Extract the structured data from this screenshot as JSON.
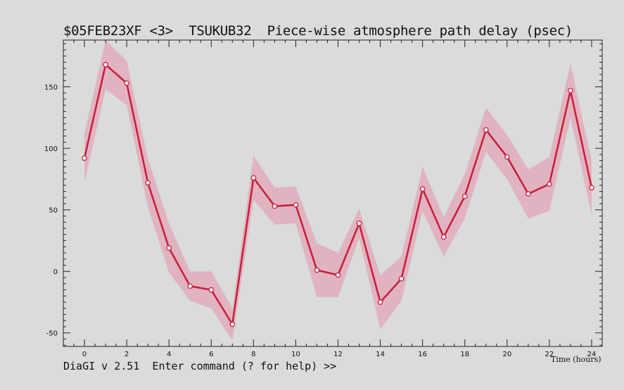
{
  "header": {
    "title": "$05FEB23XF <3>  TSUKUB32  Piece-wise atmosphere path delay (psec)"
  },
  "status_bar": {
    "prompt": "DiaGI v 2.51  Enter command (? for help) >>"
  },
  "colors": {
    "background": "#d9dcd9",
    "line": "#c8203e",
    "band": "#e3a6b8",
    "marker_fill": "#ffffff"
  },
  "chart_data": {
    "type": "line",
    "title": "$05FEB23XF <3>  TSUKUB32  Piece-wise atmosphere path delay (psec)",
    "xlabel": "Time (hours)",
    "ylabel": "",
    "xlim": [
      -1,
      24.5
    ],
    "ylim": [
      -61,
      188
    ],
    "xticks": [
      0,
      2,
      4,
      6,
      8,
      10,
      12,
      14,
      16,
      18,
      20,
      22,
      24
    ],
    "yticks": [
      -50,
      0,
      50,
      100,
      150
    ],
    "grid": false,
    "series": [
      {
        "x": [
          0,
          1,
          2,
          3,
          4,
          5,
          6,
          7,
          8,
          9,
          10,
          11,
          12,
          13,
          14,
          15,
          16,
          17,
          18,
          19,
          20,
          21,
          22,
          23,
          24
        ],
        "values": [
          92,
          168,
          153,
          72,
          19,
          -12,
          -15,
          -43,
          76,
          53,
          54,
          1,
          -3,
          39,
          -25,
          -6,
          67,
          28,
          61,
          115,
          93,
          63,
          71,
          147,
          68
        ],
        "error": [
          20,
          20,
          18,
          20,
          20,
          12,
          15,
          13,
          18,
          15,
          15,
          22,
          18,
          12,
          22,
          18,
          18,
          16,
          18,
          18,
          18,
          20,
          22,
          22,
          22
        ]
      }
    ]
  }
}
